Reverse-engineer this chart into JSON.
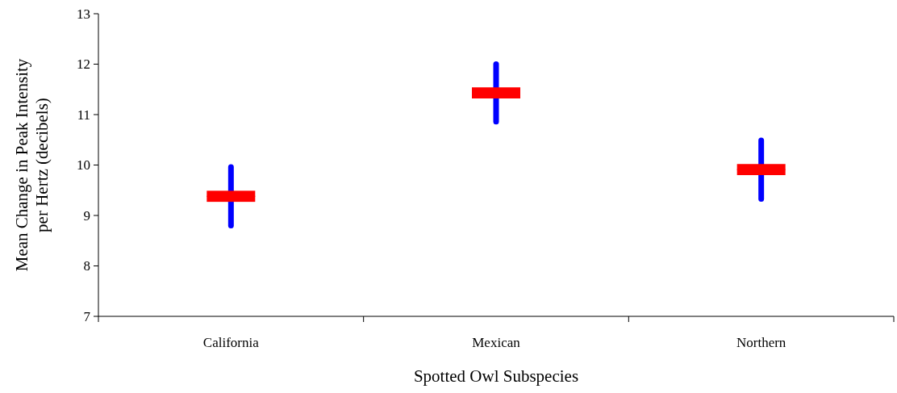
{
  "chart_data": {
    "type": "box",
    "xlabel": "Spotted Owl Subspecies",
    "ylabel": "Mean Change in Peak Intensity\nper Hertz (decibels)",
    "categories": [
      "California",
      "Mexican",
      "Northern"
    ],
    "series": [
      {
        "color": "#ff0000",
        "boxes": [
          {
            "low": 8.8,
            "q1": 9.27,
            "median": 9.38,
            "q3": 9.49,
            "high": 9.96
          },
          {
            "low": 10.86,
            "q1": 11.32,
            "median": 11.43,
            "q3": 11.54,
            "high": 12.0
          },
          {
            "low": 9.33,
            "q1": 9.8,
            "median": 9.91,
            "q3": 10.02,
            "high": 10.49
          }
        ]
      }
    ],
    "ylim": [
      7,
      13
    ],
    "yticks": [
      7,
      8,
      9,
      10,
      11,
      12,
      13
    ],
    "grid": false
  }
}
